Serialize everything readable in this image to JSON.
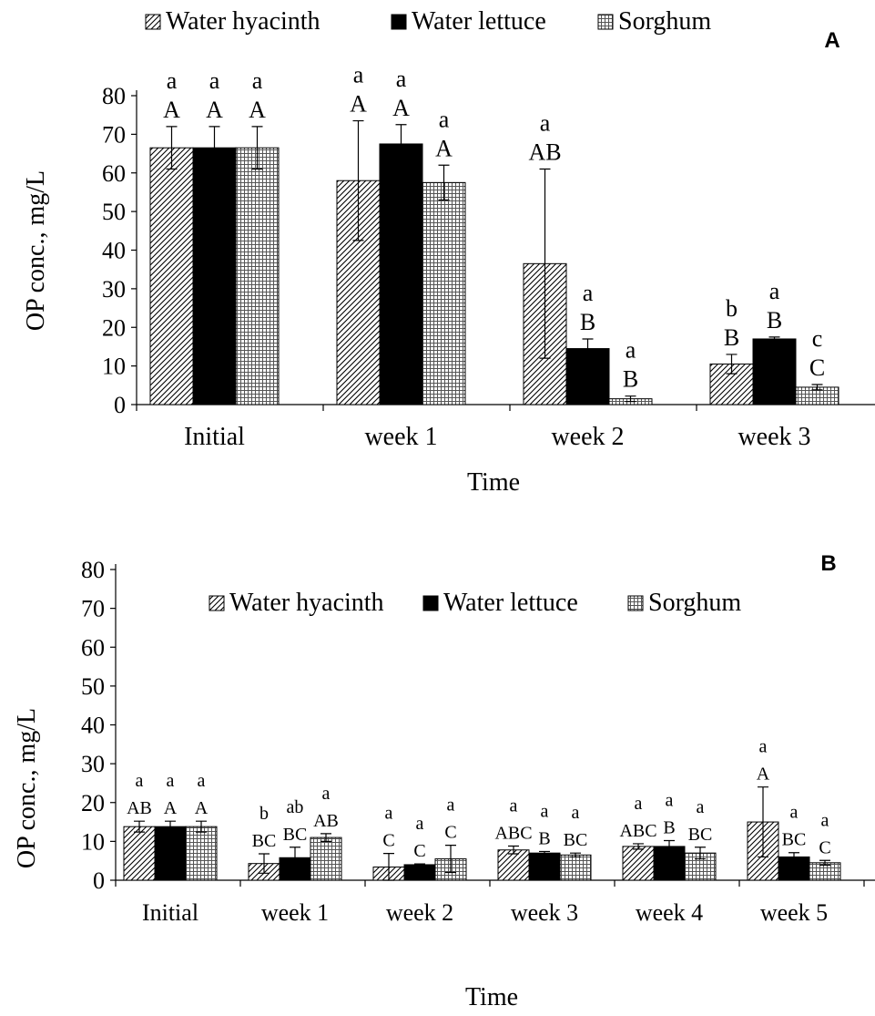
{
  "chart_data": [
    {
      "type": "bar",
      "panel_label": "A",
      "xlabel": "Time",
      "ylabel": "OP conc., mg/L",
      "ylim": [
        0,
        80
      ],
      "yticks": [
        0,
        10,
        20,
        30,
        40,
        50,
        60,
        70,
        80
      ],
      "categories": [
        "Initial",
        "week  1",
        "week 2",
        "week 3"
      ],
      "legend_position": "top",
      "series": [
        {
          "name": "Water hyacinth",
          "pattern": "diagonal-hatch",
          "values": [
            66.5,
            58,
            36.5,
            10.5
          ],
          "errors": [
            5.5,
            15.5,
            24.5,
            2.5
          ],
          "lower_letters": [
            "A",
            "A",
            "AB",
            "B"
          ],
          "upper_letters": [
            "a",
            "a",
            "a",
            "b"
          ]
        },
        {
          "name": "Water lettuce",
          "pattern": "solid-black",
          "values": [
            66.5,
            67.5,
            14.5,
            17
          ],
          "errors": [
            5.5,
            5,
            2.5,
            0.5
          ],
          "lower_letters": [
            "A",
            "A",
            "B",
            "B"
          ],
          "upper_letters": [
            "a",
            "a",
            "a",
            "a"
          ]
        },
        {
          "name": "Sorghum",
          "pattern": "dotted-grid",
          "values": [
            66.5,
            57.5,
            1.5,
            4.5
          ],
          "errors": [
            5.5,
            4.5,
            0.7,
            0.7
          ],
          "lower_letters": [
            "A",
            "A",
            "B",
            "C"
          ],
          "upper_letters": [
            "a",
            "a",
            "a",
            "c"
          ]
        }
      ]
    },
    {
      "type": "bar",
      "panel_label": "B",
      "xlabel": "Time",
      "ylabel": "OP conc., mg/L",
      "ylim": [
        0,
        80
      ],
      "yticks": [
        0,
        10,
        20,
        30,
        40,
        50,
        60,
        70,
        80
      ],
      "categories": [
        "Initial",
        "week 1",
        "week 2",
        "week 3",
        "week 4",
        "week 5"
      ],
      "legend_position": "top-center",
      "series": [
        {
          "name": "Water hyacinth",
          "pattern": "diagonal-hatch",
          "values": [
            13.8,
            4.3,
            3.4,
            7.8,
            8.7,
            15
          ],
          "errors": [
            1.4,
            2.5,
            3.5,
            1,
            0.7,
            9
          ],
          "lower_letters": [
            "AB",
            "BC",
            "C",
            "ABC",
            "ABC",
            "A"
          ],
          "upper_letters": [
            "a",
            "b",
            "a",
            "a",
            "a",
            "a"
          ]
        },
        {
          "name": "Water lettuce",
          "pattern": "solid-black",
          "values": [
            13.8,
            5.8,
            4,
            7,
            8.7,
            6
          ],
          "errors": [
            1.4,
            2.7,
            0.2,
            0.4,
            1.5,
            1.1
          ],
          "lower_letters": [
            "A",
            "BC",
            "C",
            "B",
            "B",
            "BC"
          ],
          "upper_letters": [
            "a",
            "ab",
            "a",
            "a",
            "a",
            "a"
          ]
        },
        {
          "name": "Sorghum",
          "pattern": "dotted-grid",
          "values": [
            13.8,
            11,
            5.5,
            6.5,
            7,
            4.5
          ],
          "errors": [
            1.4,
            1,
            3.5,
            0.5,
            1.5,
            0.6
          ],
          "lower_letters": [
            "A",
            "AB",
            "C",
            "BC",
            "BC",
            "C"
          ],
          "upper_letters": [
            "a",
            "a",
            "a",
            "a",
            "a",
            "a"
          ]
        }
      ]
    }
  ]
}
